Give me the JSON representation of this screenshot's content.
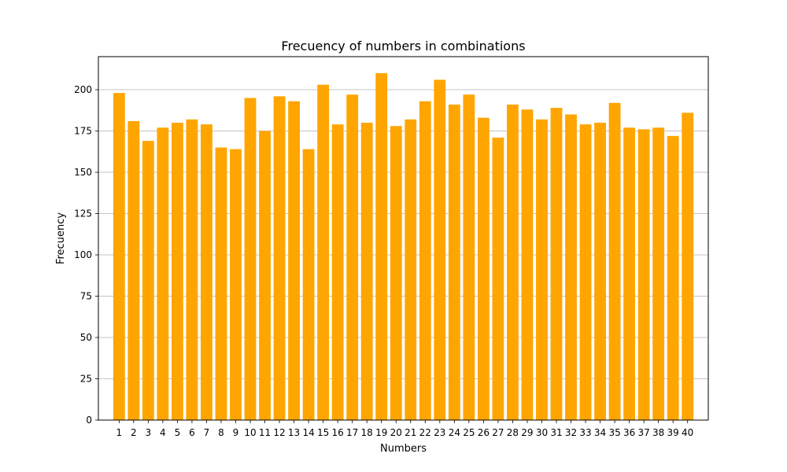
{
  "chart_data": {
    "type": "bar",
    "title": "Frecuency of numbers in combinations",
    "xlabel": "Numbers",
    "ylabel": "Frecuency",
    "categories": [
      "1",
      "2",
      "3",
      "4",
      "5",
      "6",
      "7",
      "8",
      "9",
      "10",
      "11",
      "12",
      "13",
      "14",
      "15",
      "16",
      "17",
      "18",
      "19",
      "20",
      "21",
      "22",
      "23",
      "24",
      "25",
      "26",
      "27",
      "28",
      "29",
      "30",
      "31",
      "32",
      "33",
      "34",
      "35",
      "36",
      "37",
      "38",
      "39",
      "40"
    ],
    "values": [
      198,
      181,
      169,
      177,
      180,
      182,
      179,
      165,
      164,
      195,
      175,
      196,
      193,
      164,
      203,
      179,
      197,
      180,
      210,
      178,
      182,
      193,
      206,
      191,
      197,
      183,
      171,
      191,
      188,
      182,
      189,
      185,
      179,
      180,
      192,
      177,
      176,
      177,
      172,
      186
    ],
    "ylim": [
      0,
      220
    ],
    "yticks": [
      0,
      25,
      50,
      75,
      100,
      125,
      150,
      175,
      200
    ],
    "grid": "y-axis",
    "bar_color": "#ffa500",
    "grid_color": "#b0b0b0"
  }
}
